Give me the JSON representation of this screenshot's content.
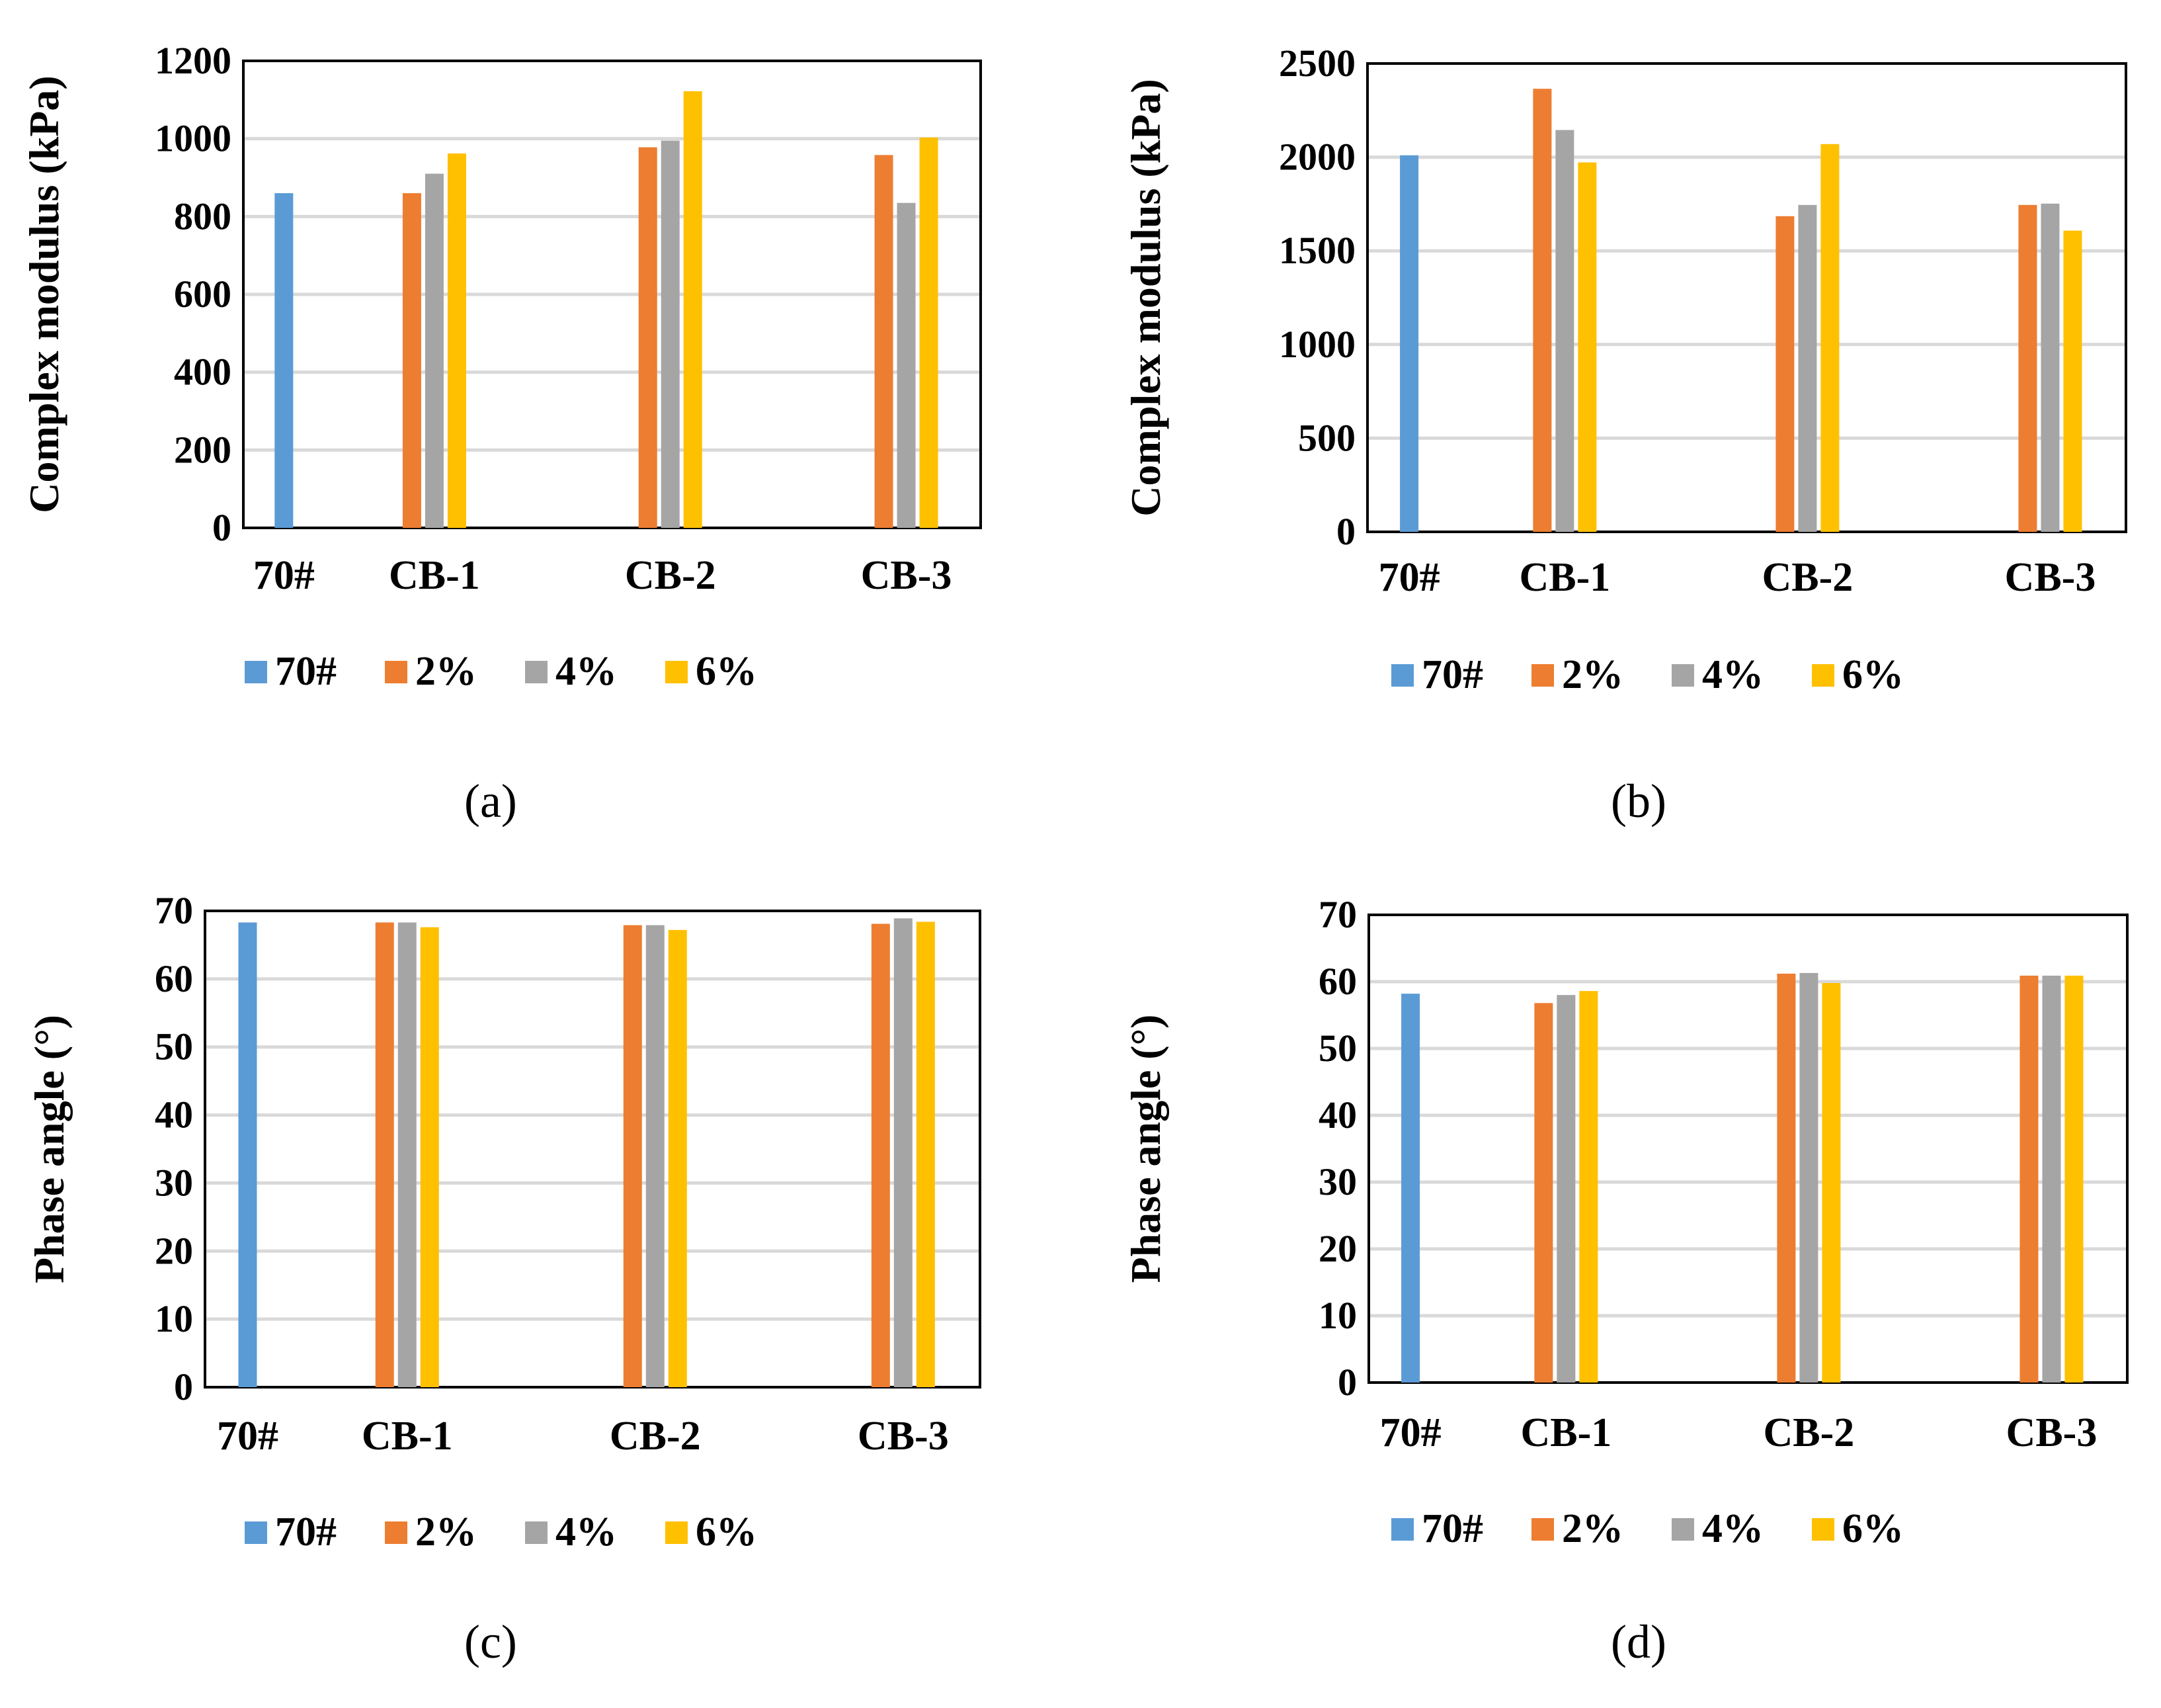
{
  "colors": {
    "70#": "#5B9BD5",
    "2%": "#ED7D31",
    "4%": "#A5A5A5",
    "6%": "#FFC000",
    "grid": "#D9D9D9",
    "frame": "#000000"
  },
  "chart_data": [
    {
      "id": "a",
      "type": "bar",
      "caption": "(a)",
      "ylabel": "Complex modulus (kPa)",
      "ylim": [
        0,
        1200
      ],
      "yticks": [
        0,
        200,
        400,
        600,
        800,
        1000,
        1200
      ],
      "categories": [
        "70#",
        "CB-1",
        "CB-2",
        "CB-3"
      ],
      "legend": [
        "70#",
        "2%",
        "4%",
        "6%"
      ],
      "series": [
        {
          "name": "70#",
          "values": [
            860,
            null,
            null,
            null
          ]
        },
        {
          "name": "2%",
          "values": [
            null,
            860,
            978,
            958
          ]
        },
        {
          "name": "4%",
          "values": [
            null,
            910,
            995,
            835
          ]
        },
        {
          "name": "6%",
          "values": [
            null,
            962,
            1122,
            1003
          ]
        }
      ]
    },
    {
      "id": "b",
      "type": "bar",
      "caption": "(b)",
      "ylabel": "Complex modulus (kPa)",
      "ylim": [
        0,
        2500
      ],
      "yticks": [
        0,
        500,
        1000,
        1500,
        2000,
        2500
      ],
      "categories": [
        "70#",
        "CB-1",
        "CB-2",
        "CB-3"
      ],
      "legend": [
        "70#",
        "2%",
        "4%",
        "6%"
      ],
      "series": [
        {
          "name": "70#",
          "values": [
            2010,
            null,
            null,
            null
          ]
        },
        {
          "name": "2%",
          "values": [
            null,
            2365,
            1685,
            1745
          ]
        },
        {
          "name": "4%",
          "values": [
            null,
            2145,
            1745,
            1752
          ]
        },
        {
          "name": "6%",
          "values": [
            null,
            1972,
            2070,
            1608
          ]
        }
      ]
    },
    {
      "id": "c",
      "type": "bar",
      "caption": "(c)",
      "ylabel": "Phase angle (°)",
      "ylim": [
        0,
        70
      ],
      "yticks": [
        0,
        10,
        20,
        30,
        40,
        50,
        60,
        70
      ],
      "categories": [
        "70#",
        "CB-1",
        "CB-2",
        "CB-3"
      ],
      "legend": [
        "70#",
        "2%",
        "4%",
        "6%"
      ],
      "series": [
        {
          "name": "70#",
          "values": [
            68.3,
            null,
            null,
            null
          ]
        },
        {
          "name": "2%",
          "values": [
            null,
            68.3,
            67.9,
            68.1
          ]
        },
        {
          "name": "4%",
          "values": [
            null,
            68.3,
            67.9,
            68.9
          ]
        },
        {
          "name": "6%",
          "values": [
            null,
            67.6,
            67.2,
            68.4
          ]
        }
      ]
    },
    {
      "id": "d",
      "type": "bar",
      "caption": "(d)",
      "ylabel": "Phase angle (°)",
      "ylim": [
        0,
        70
      ],
      "yticks": [
        0,
        10,
        20,
        30,
        40,
        50,
        60,
        70
      ],
      "categories": [
        "70#",
        "CB-1",
        "CB-2",
        "CB-3"
      ],
      "legend": [
        "70#",
        "2%",
        "4%",
        "6%"
      ],
      "series": [
        {
          "name": "70#",
          "values": [
            58.2,
            null,
            null,
            null
          ]
        },
        {
          "name": "2%",
          "values": [
            null,
            56.8,
            61.2,
            60.9
          ]
        },
        {
          "name": "4%",
          "values": [
            null,
            58.0,
            61.3,
            60.9
          ]
        },
        {
          "name": "6%",
          "values": [
            null,
            58.6,
            59.8,
            60.9
          ]
        }
      ]
    }
  ]
}
